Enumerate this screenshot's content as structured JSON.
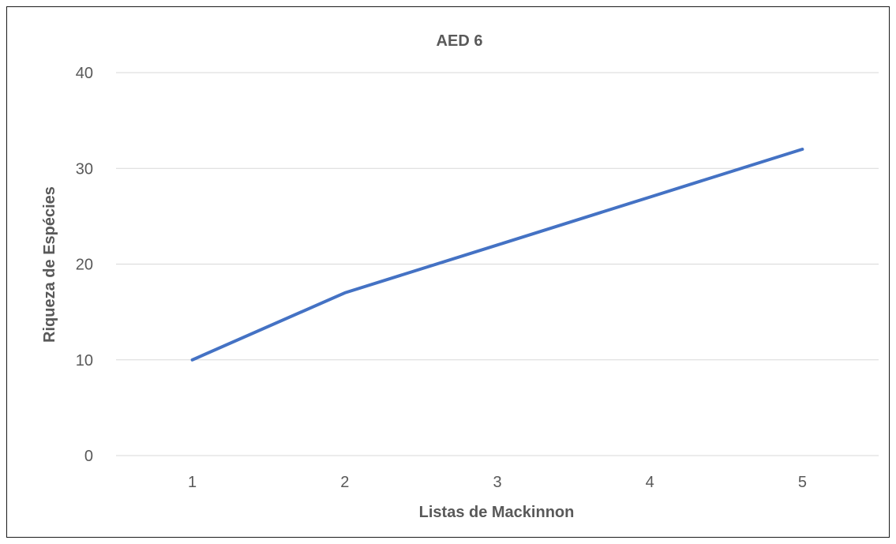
{
  "chart_data": {
    "type": "line",
    "title": "AED 6",
    "xlabel": "Listas de Mackinnon",
    "ylabel": "Riqueza de Espécies",
    "categories": [
      "1",
      "2",
      "3",
      "4",
      "5"
    ],
    "series": [
      {
        "values": [
          10,
          17,
          22,
          27,
          32
        ],
        "color": "#4472c4"
      }
    ],
    "yticks": [
      0,
      10,
      20,
      30,
      40
    ],
    "ylim": [
      0,
      40
    ],
    "grid": true,
    "legend": "none"
  }
}
